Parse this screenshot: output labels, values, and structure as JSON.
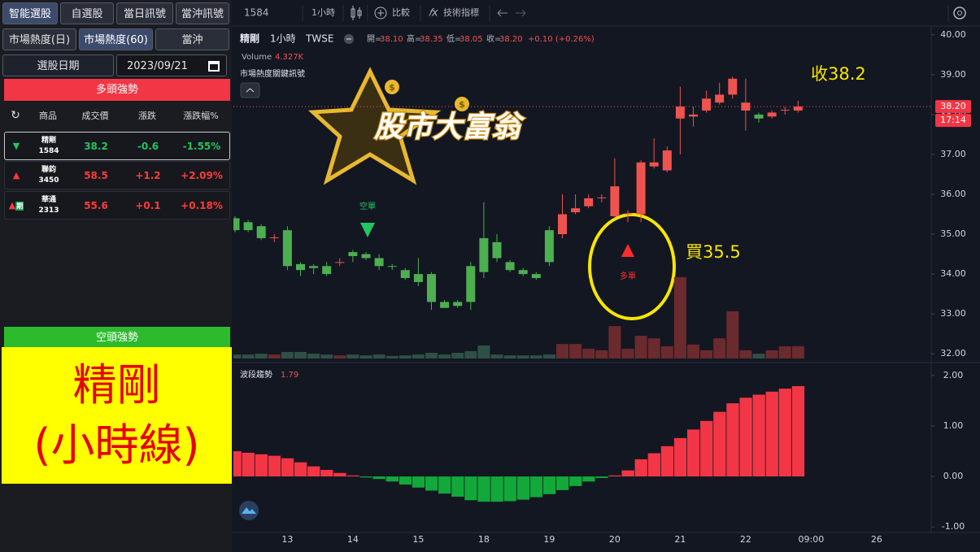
{
  "toolbar": {
    "symbol": "1584",
    "interval": "1小時",
    "compare": "比較",
    "indicators": "技術指標"
  },
  "sidebar": {
    "tabs": [
      "智能選股",
      "自選股",
      "當日訊號",
      "當沖訊號"
    ],
    "subtabs": [
      "市場熱度(日)",
      "市場熱度(60)",
      "當沖"
    ],
    "date_label": "選股日期",
    "date": "2023/09/21",
    "bull_title": "多頭強勢",
    "columns": [
      "商品",
      "成交價",
      "漲跌",
      "漲跌幅%"
    ],
    "rows": [
      {
        "name": "精剛",
        "code": "1584",
        "price": "38.2",
        "change": "-0.6",
        "pct": "-1.55%"
      },
      {
        "name": "聯鈞",
        "code": "3450",
        "price": "58.5",
        "change": "+1.2",
        "pct": "+2.09%"
      },
      {
        "name": "華通",
        "code": "2313",
        "price": "55.6",
        "change": "+0.1",
        "pct": "+0.18%",
        "tag": "期"
      }
    ],
    "bear_title": "空頭強勢"
  },
  "overlay": {
    "line1": "精剛",
    "line2": "(小時線)"
  },
  "logo": "股市大富翁",
  "chart_data": {
    "type": "candlestick",
    "title": "精剛",
    "interval": "1小時",
    "exchange": "TWSE",
    "ohlc_labels": [
      "開=",
      "高=",
      "低=",
      "收="
    ],
    "ohlc_values": [
      "38.10",
      "38.35",
      "38.05",
      "38.20"
    ],
    "change": "+0.10 (+0.26%)",
    "indicator_title": "市場熱度關鍵訊號",
    "up_color": "#ef5350",
    "down_color": "#4caf50",
    "open": [
      35.4,
      35.3,
      35.2,
      34.9,
      35.1,
      34.25,
      34.2,
      34.2,
      34.28,
      34.55,
      34.5,
      34.4,
      34.2,
      34.1,
      34.0,
      34.0,
      33.3,
      33.3,
      34.2,
      34.9,
      34.8,
      34.3,
      34.1,
      34.0,
      35.1,
      35.0,
      35.55,
      35.7,
      35.9,
      35.45,
      35.5,
      35.5,
      36.7,
      36.6,
      37.9,
      37.95,
      38.1,
      38.3,
      38.5,
      38.1,
      38.0,
      37.95,
      38.1,
      38.1
    ],
    "high": [
      35.45,
      35.35,
      35.25,
      35.0,
      35.2,
      34.3,
      34.25,
      34.3,
      34.4,
      34.6,
      34.55,
      34.5,
      34.25,
      34.15,
      34.4,
      34.05,
      33.35,
      33.35,
      34.3,
      35.8,
      35.0,
      34.35,
      34.15,
      34.05,
      35.2,
      36.0,
      36.0,
      36.0,
      36.0,
      36.9,
      35.6,
      36.85,
      37.4,
      37.2,
      38.7,
      38.2,
      38.6,
      38.8,
      38.95,
      38.9,
      38.05,
      38.1,
      38.2,
      38.35
    ],
    "low": [
      35.05,
      35.05,
      34.85,
      34.8,
      34.1,
      33.95,
      34.0,
      33.95,
      34.2,
      34.3,
      34.35,
      34.1,
      34.1,
      33.85,
      33.7,
      33.1,
      33.15,
      33.15,
      33.1,
      33.9,
      34.3,
      34.05,
      33.95,
      33.85,
      34.2,
      34.9,
      35.5,
      35.65,
      35.8,
      35.4,
      35.3,
      35.3,
      36.65,
      36.55,
      37.0,
      37.7,
      38.05,
      38.25,
      38.4,
      37.6,
      37.8,
      37.9,
      38.0,
      38.05
    ],
    "close": [
      35.1,
      35.1,
      34.9,
      34.92,
      34.2,
      34.1,
      34.15,
      34.0,
      34.3,
      34.45,
      34.4,
      34.2,
      34.18,
      33.9,
      33.8,
      33.3,
      33.15,
      33.2,
      33.3,
      34.05,
      34.4,
      34.1,
      34.0,
      33.9,
      34.3,
      35.5,
      35.65,
      35.9,
      35.92,
      36.2,
      35.52,
      36.8,
      36.8,
      37.1,
      38.2,
      38.0,
      38.4,
      38.5,
      38.9,
      38.3,
      37.9,
      38.05,
      38.12,
      38.2
    ],
    "ylim": [
      31.8,
      40.2
    ],
    "yticks": [
      {
        "value": 40,
        "label": "40.00"
      },
      {
        "value": 39,
        "label": "39.00"
      },
      {
        "value": 38,
        "label": "38.00"
      },
      {
        "value": 37,
        "label": "37.00"
      },
      {
        "value": 36,
        "label": "36.00"
      },
      {
        "value": 35,
        "label": "35.00"
      },
      {
        "value": 34,
        "label": "34.00"
      },
      {
        "value": 33,
        "label": "33.00"
      },
      {
        "value": 32,
        "label": "32.00"
      }
    ],
    "last_price": {
      "value": 38.2,
      "label": "38.20"
    },
    "countdown": "17:14",
    "volume": {
      "label": "Volume",
      "up_color": "#6b2a2e",
      "down_color": "#2f5046",
      "ylim": [
        0,
        30
      ],
      "values": [
        1.4,
        1.4,
        1.7,
        1.4,
        2.3,
        2.3,
        1.7,
        1.4,
        1.1,
        1.4,
        1.1,
        1.4,
        0.9,
        1.1,
        1.4,
        2,
        1.4,
        2,
        2.6,
        4.6,
        1.4,
        1.1,
        1.1,
        1.1,
        1.4,
        5.1,
        5.1,
        3.4,
        2.9,
        11.4,
        3.4,
        8,
        7.1,
        4.3,
        28.6,
        4.9,
        2.9,
        7.1,
        16.6,
        2.9,
        1.7,
        2.9,
        4.3,
        4.327
      ],
      "value_label": "4.327K"
    },
    "annotations": {
      "close_note": "收38.2",
      "buy_note": "買35.5",
      "long_signal": "多單",
      "short_signal": "空單"
    },
    "time_labels": [
      "13",
      "14",
      "15",
      "18",
      "19",
      "20",
      "21",
      "22",
      "09:00",
      "26"
    ],
    "oscillator": {
      "type": "bar",
      "title": "波段趨勢",
      "pos_color": "#f23645",
      "neg_color": "#12a83a",
      "values": [
        0.5,
        0.47,
        0.44,
        0.41,
        0.36,
        0.28,
        0.2,
        0.13,
        0.07,
        0.02,
        -0.02,
        -0.05,
        -0.1,
        -0.16,
        -0.22,
        -0.28,
        -0.34,
        -0.4,
        -0.47,
        -0.5,
        -0.5,
        -0.49,
        -0.46,
        -0.41,
        -0.35,
        -0.27,
        -0.19,
        -0.1,
        -0.03,
        0.02,
        0.12,
        0.34,
        0.46,
        0.6,
        0.76,
        0.93,
        1.1,
        1.28,
        1.45,
        1.56,
        1.62,
        1.68,
        1.74,
        1.79
      ],
      "ylim": [
        -1.11,
        2.24
      ],
      "yticks": [
        {
          "value": 2,
          "label": "2.00"
        },
        {
          "value": 1,
          "label": "1.00"
        },
        {
          "value": 0,
          "label": "0.00"
        },
        {
          "value": -1,
          "label": "-1.00"
        }
      ]
    }
  }
}
